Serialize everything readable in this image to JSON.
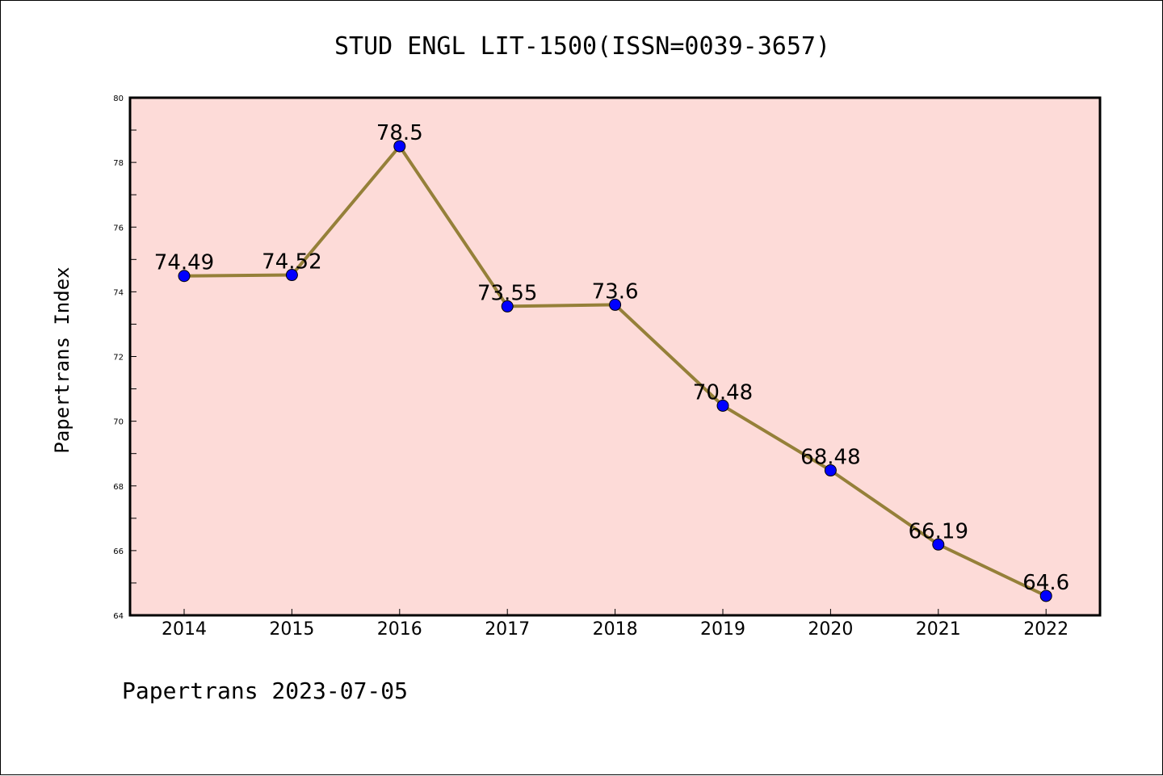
{
  "chart_data": {
    "type": "line",
    "title": "STUD ENGL LIT-1500(ISSN=0039-3657)",
    "ylabel": "Papertrans Index",
    "xlabel": "",
    "categories": [
      "2014",
      "2015",
      "2016",
      "2017",
      "2018",
      "2019",
      "2020",
      "2021",
      "2022"
    ],
    "values": [
      74.49,
      74.52,
      78.5,
      73.55,
      73.6,
      70.48,
      68.48,
      66.19,
      64.6
    ],
    "data_labels": [
      "74.49",
      "74.52",
      "78.5",
      "73.55",
      "73.6",
      "70.48",
      "68.48",
      "66.19",
      "64.6"
    ],
    "ylim": [
      64,
      80
    ],
    "yticks": [
      64,
      66,
      68,
      70,
      72,
      74,
      76,
      78,
      80
    ],
    "grid": false,
    "colors": {
      "plot_background": "#fddbd8",
      "line": "#958039",
      "marker": "#0000ff"
    }
  },
  "footer": "Papertrans 2023-07-05"
}
